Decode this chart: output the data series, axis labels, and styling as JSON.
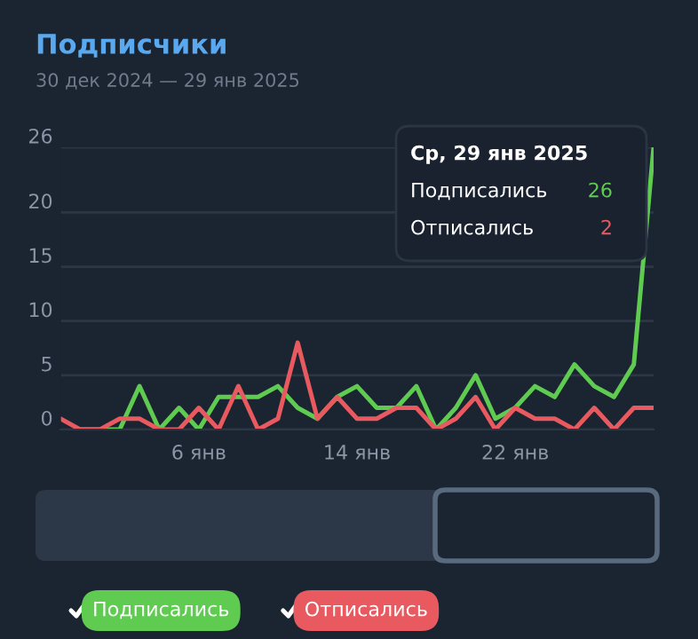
{
  "chart_data": {
    "type": "line",
    "title": "Подписчики",
    "subtitle": "30 дек 2024 — 29 янв 2025",
    "x": [
      "2024-12-30",
      "2024-12-31",
      "2025-01-01",
      "2025-01-02",
      "2025-01-03",
      "2025-01-04",
      "2025-01-05",
      "2025-01-06",
      "2025-01-07",
      "2025-01-08",
      "2025-01-09",
      "2025-01-10",
      "2025-01-11",
      "2025-01-12",
      "2025-01-13",
      "2025-01-14",
      "2025-01-15",
      "2025-01-16",
      "2025-01-17",
      "2025-01-18",
      "2025-01-19",
      "2025-01-20",
      "2025-01-21",
      "2025-01-22",
      "2025-01-23",
      "2025-01-24",
      "2025-01-25",
      "2025-01-26",
      "2025-01-27",
      "2025-01-28",
      "2025-01-29"
    ],
    "series": [
      {
        "name": "Подписались",
        "color": "#5fcb51",
        "values": [
          null,
          0,
          0,
          0,
          4,
          0,
          2,
          0,
          3,
          3,
          3,
          4,
          2,
          1,
          3,
          4,
          2,
          2,
          4,
          0,
          2,
          5,
          1,
          2,
          4,
          3,
          6,
          4,
          3,
          6,
          26
        ]
      },
      {
        "name": "Отписались",
        "color": "#e85a5f",
        "values": [
          1,
          0,
          0,
          1,
          1,
          0,
          0,
          2,
          0,
          4,
          0,
          1,
          8,
          1,
          3,
          1,
          1,
          2,
          2,
          0,
          1,
          3,
          0,
          2,
          1,
          1,
          0,
          2,
          0,
          2,
          2
        ]
      }
    ],
    "xlim": [
      "2024-12-30",
      "2025-01-29"
    ],
    "xticks": [
      {
        "value": "2025-01-06",
        "label": "6 янв"
      },
      {
        "value": "2025-01-14",
        "label": "14 янв"
      },
      {
        "value": "2025-01-22",
        "label": "22 янв"
      }
    ],
    "ylim": [
      0,
      26
    ],
    "yticks": [
      0,
      5,
      10,
      15,
      20,
      26
    ],
    "grid": "y",
    "legend": "bottom",
    "marker": "none",
    "line_style": "solid",
    "annotations": [
      "Ср, 29 янв 2025",
      "Подписались",
      "26",
      "Отписались",
      "2"
    ]
  }
}
